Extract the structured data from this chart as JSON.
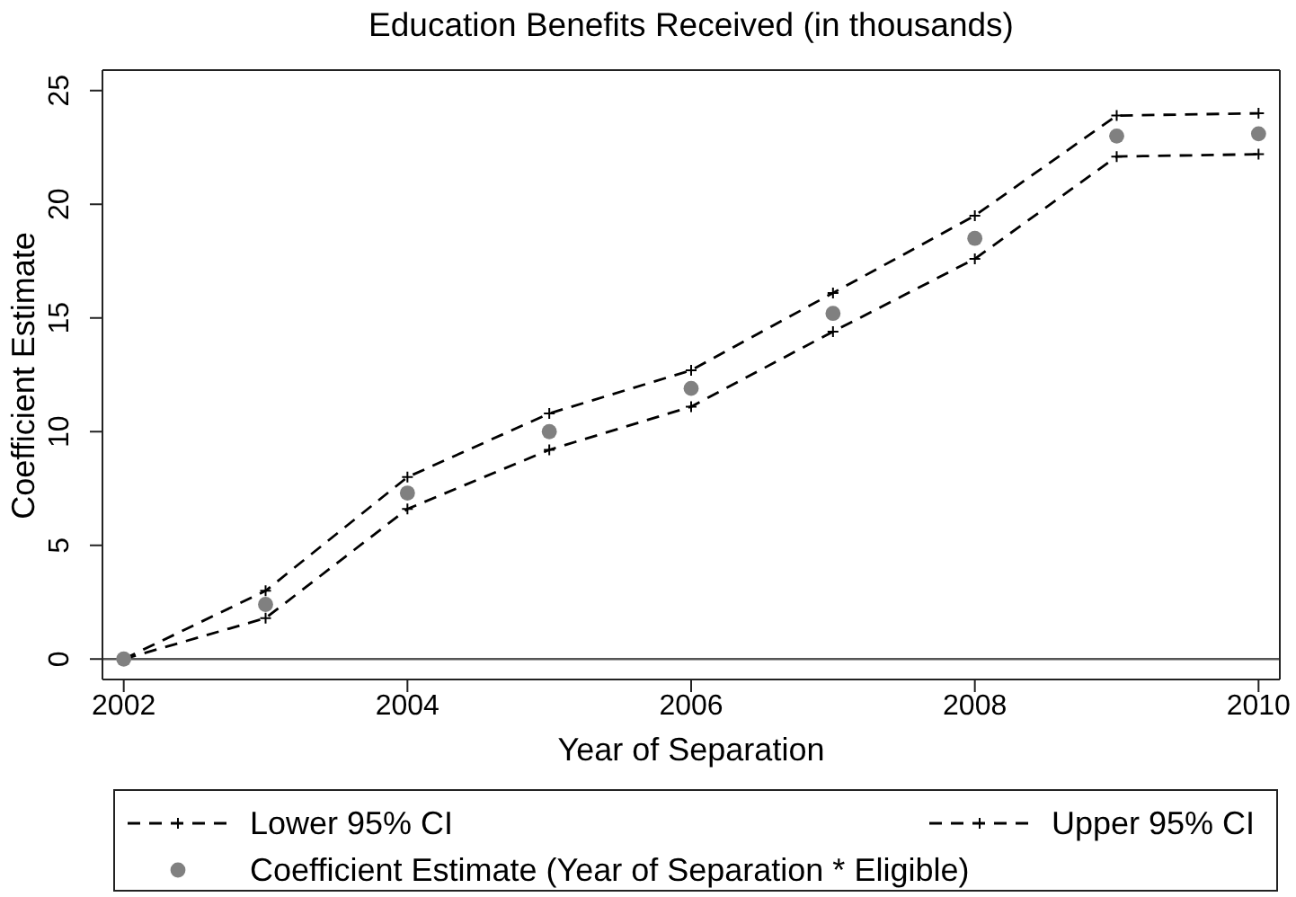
{
  "chart_data": {
    "type": "line",
    "title": "Education Benefits Received (in thousands)",
    "xlabel": "Year of Separation",
    "ylabel": "Coefficient Estimate",
    "x": [
      2002,
      2003,
      2004,
      2005,
      2006,
      2007,
      2008,
      2009,
      2010
    ],
    "series": [
      {
        "name": "Lower 95% CI",
        "color": "#000000",
        "values": [
          0,
          1.8,
          6.6,
          9.2,
          11.1,
          14.4,
          17.6,
          22.1,
          22.2
        ]
      },
      {
        "name": "Upper 95% CI",
        "color": "#000000",
        "values": [
          0,
          3.0,
          8.0,
          10.8,
          12.7,
          16.1,
          19.5,
          23.9,
          24.0
        ]
      },
      {
        "name": "Coefficient Estimate (Year of Separation * Eligible)",
        "type": "scatter",
        "marker": "circle",
        "color": "#808080",
        "values": [
          0,
          2.4,
          7.3,
          10.0,
          11.9,
          15.2,
          18.5,
          23.0,
          23.1
        ]
      }
    ],
    "xlim": [
      2001.85,
      2010.15
    ],
    "xticks": [
      2002,
      2004,
      2006,
      2008,
      2010
    ],
    "ylim": [
      -0.9,
      25.9
    ],
    "yticks": [
      0,
      5,
      10,
      15,
      20,
      25
    ],
    "ref_lines": [
      {
        "axis": "y",
        "value": 0,
        "color": "#555555"
      }
    ],
    "marker": "cross",
    "line_style": "dashed",
    "legend": "bottom"
  }
}
